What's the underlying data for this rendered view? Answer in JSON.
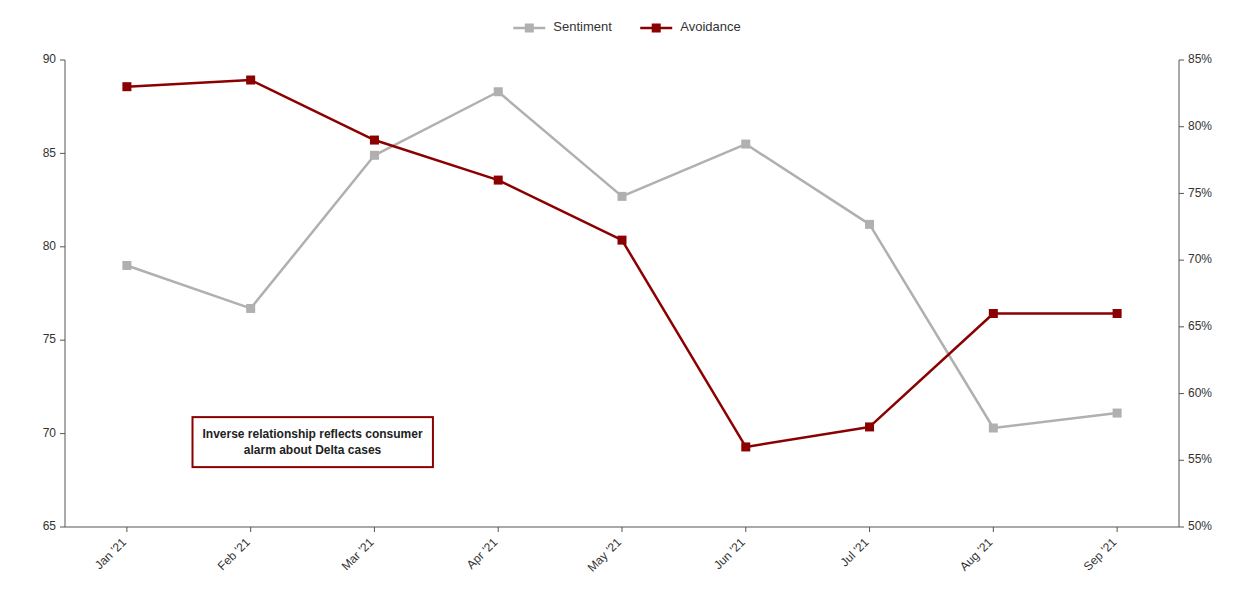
{
  "chart_data": {
    "type": "line",
    "categories": [
      "Jan '21",
      "Feb '21",
      "Mar '21",
      "Apr '21",
      "May '21",
      "Jun '21",
      "Jul '21",
      "Aug '21",
      "Sep '21"
    ],
    "series": [
      {
        "name": "Sentiment",
        "color": "#b0b0b0",
        "marker": "square",
        "line_style": "solid",
        "values": [
          79.0,
          76.7,
          84.9,
          88.3,
          82.7,
          85.5,
          81.2,
          70.3,
          71.1
        ]
      },
      {
        "name": "Avoidance",
        "color": "#8b0000",
        "marker": "square",
        "line_style": "solid",
        "axis": "y2",
        "values": [
          83.0,
          83.5,
          79.0,
          76.0,
          71.5,
          56.0,
          57.5,
          66.0,
          66.0
        ]
      }
    ],
    "ylim": [
      65,
      90
    ],
    "yticks": [
      65,
      70,
      75,
      80,
      85,
      90
    ],
    "y2lim": [
      50,
      85
    ],
    "y2ticks": [
      {
        "value": 50,
        "label": "50%"
      },
      {
        "value": 55,
        "label": "55%"
      },
      {
        "value": 60,
        "label": "60%"
      },
      {
        "value": 65,
        "label": "65%"
      },
      {
        "value": 70,
        "label": "70%"
      },
      {
        "value": 75,
        "label": "75%"
      },
      {
        "value": 80,
        "label": "80%"
      },
      {
        "value": 85,
        "label": "85%"
      }
    ],
    "annotation": "Inverse relationship reflects consumer\nalarm about Delta cases",
    "grid": false,
    "legend": "top"
  }
}
